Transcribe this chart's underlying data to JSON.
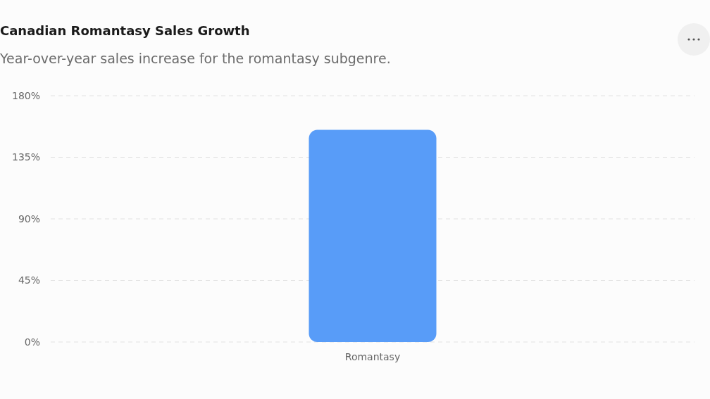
{
  "chart_data": {
    "type": "bar",
    "title": "Canadian Romantasy Sales Growth",
    "subtitle": "Year-over-year sales increase for the romantasy subgenre.",
    "categories": [
      "Romantasy"
    ],
    "values": [
      155
    ],
    "color": "#589cf8",
    "ylim": [
      0,
      180
    ],
    "yticks": [
      {
        "value": 0,
        "label": "0%"
      },
      {
        "value": 45,
        "label": "45%"
      },
      {
        "value": 90,
        "label": "90%"
      },
      {
        "value": 135,
        "label": "135%"
      },
      {
        "value": 180,
        "label": "180%"
      }
    ],
    "grid": "y"
  }
}
